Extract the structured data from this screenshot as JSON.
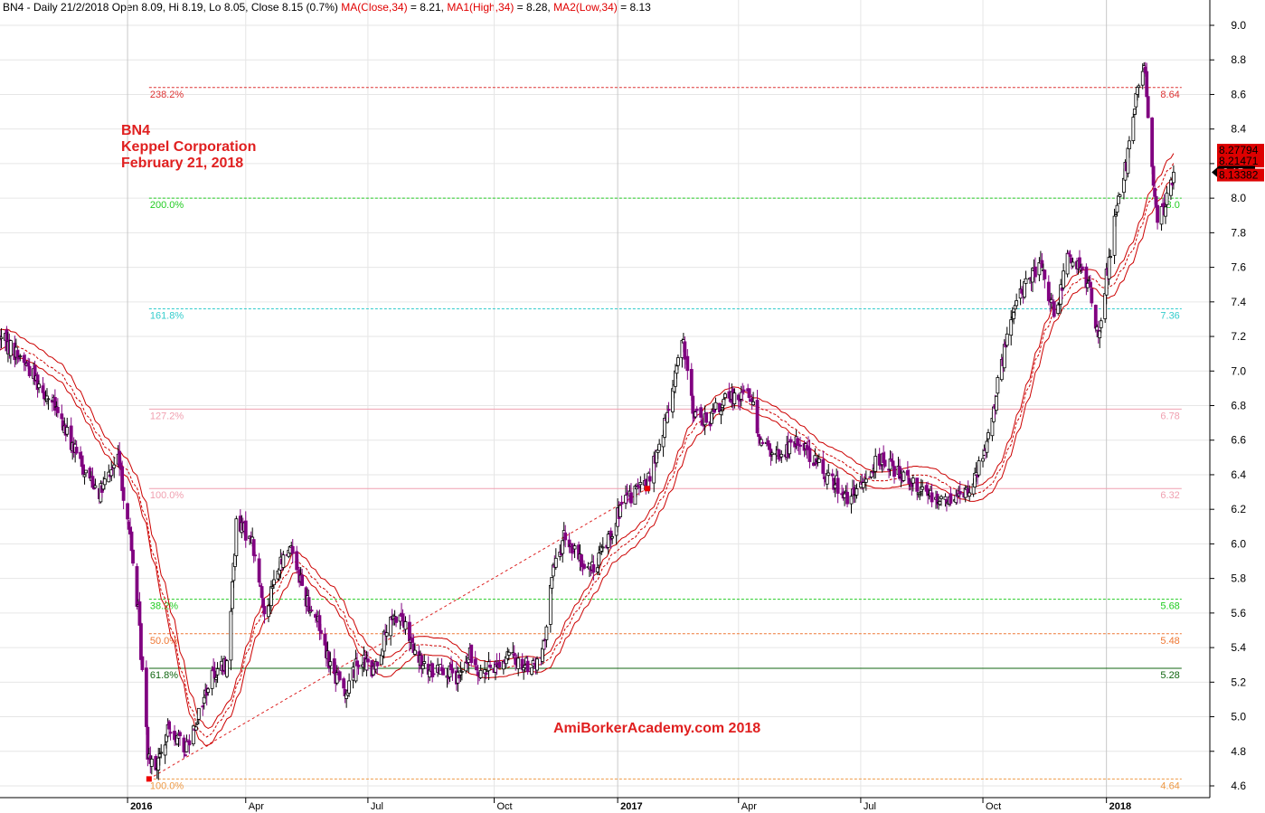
{
  "header": {
    "prefix": "BN4 - Daily 21/2/2018 Open 8.09, Hi 8.19, Lo 8.05, Close 8.15 (0.7%)",
    "ma_label": "MA(Close,34)",
    "ma_value": " = 8.21,",
    "ma1_label": "MA1(High,34)",
    "ma1_value": " = 8.28,",
    "ma2_label": "MA2(Low,34)",
    "ma2_value": " = 8.13"
  },
  "annotations": {
    "ticker": "BN4",
    "company": "Keppel Corporation",
    "date": "February 21, 2018",
    "watermark": "AmiBorkerAcademy.com 2018"
  },
  "colors": {
    "candle_up": "#000000",
    "candle_down": "#800080",
    "moving_average": "#cc0000",
    "annotation_text": "#e02020",
    "gridline": "#e6e6e6"
  },
  "chart_data": {
    "type": "candlestick",
    "ylim": [
      4.5,
      9.0
    ],
    "y_ticks": [
      "4.6",
      "4.8",
      "5.0",
      "5.2",
      "5.4",
      "5.6",
      "5.8",
      "6.0",
      "6.2",
      "6.4",
      "6.6",
      "6.8",
      "7.0",
      "7.2",
      "7.4",
      "7.6",
      "7.8",
      "8.0",
      "8.2",
      "8.4",
      "8.6",
      "8.8",
      "9.0"
    ],
    "x_ticks": [
      {
        "label": "2016",
        "date": "2016-01-04",
        "bold": true
      },
      {
        "label": "Apr",
        "date": "2016-04-01",
        "bold": false
      },
      {
        "label": "Jul",
        "date": "2016-07-01",
        "bold": false
      },
      {
        "label": "Oct",
        "date": "2016-10-03",
        "bold": false
      },
      {
        "label": "2017",
        "date": "2017-01-03",
        "bold": true
      },
      {
        "label": "Apr",
        "date": "2017-04-03",
        "bold": false
      },
      {
        "label": "Jul",
        "date": "2017-07-03",
        "bold": false
      },
      {
        "label": "Oct",
        "date": "2017-10-02",
        "bold": false
      },
      {
        "label": "2018",
        "date": "2018-01-02",
        "bold": true
      }
    ],
    "price_path": [
      [
        "2015-10-01",
        7.2
      ],
      [
        "2015-10-20",
        7.05
      ],
      [
        "2015-11-10",
        6.8
      ],
      [
        "2015-12-01",
        6.45
      ],
      [
        "2015-12-15",
        6.3
      ],
      [
        "2015-12-28",
        6.5
      ],
      [
        "2016-01-05",
        6.1
      ],
      [
        "2016-01-12",
        5.6
      ],
      [
        "2016-01-19",
        4.8
      ],
      [
        "2016-01-26",
        4.72
      ],
      [
        "2016-02-05",
        4.95
      ],
      [
        "2016-02-15",
        4.8
      ],
      [
        "2016-02-25",
        5.0
      ],
      [
        "2016-03-07",
        5.25
      ],
      [
        "2016-03-18",
        5.3
      ],
      [
        "2016-03-25",
        6.1
      ],
      [
        "2016-04-05",
        6.05
      ],
      [
        "2016-04-15",
        5.6
      ],
      [
        "2016-04-25",
        5.85
      ],
      [
        "2016-05-05",
        6.0
      ],
      [
        "2016-05-15",
        5.7
      ],
      [
        "2016-05-25",
        5.55
      ],
      [
        "2016-06-05",
        5.25
      ],
      [
        "2016-06-15",
        5.15
      ],
      [
        "2016-06-25",
        5.35
      ],
      [
        "2016-07-05",
        5.25
      ],
      [
        "2016-07-15",
        5.5
      ],
      [
        "2016-07-25",
        5.6
      ],
      [
        "2016-08-05",
        5.35
      ],
      [
        "2016-08-15",
        5.25
      ],
      [
        "2016-08-25",
        5.3
      ],
      [
        "2016-09-05",
        5.2
      ],
      [
        "2016-09-15",
        5.35
      ],
      [
        "2016-09-25",
        5.25
      ],
      [
        "2016-10-05",
        5.3
      ],
      [
        "2016-10-15",
        5.35
      ],
      [
        "2016-10-25",
        5.3
      ],
      [
        "2016-11-05",
        5.3
      ],
      [
        "2016-11-10",
        5.42
      ],
      [
        "2016-11-14",
        5.8
      ],
      [
        "2016-11-25",
        6.05
      ],
      [
        "2016-12-05",
        5.9
      ],
      [
        "2016-12-15",
        5.85
      ],
      [
        "2016-12-25",
        6.0
      ],
      [
        "2017-01-05",
        6.2
      ],
      [
        "2017-01-15",
        6.3
      ],
      [
        "2017-01-25",
        6.35
      ],
      [
        "2017-02-05",
        6.6
      ],
      [
        "2017-02-15",
        7.0
      ],
      [
        "2017-02-20",
        7.18
      ],
      [
        "2017-03-01",
        6.75
      ],
      [
        "2017-03-10",
        6.7
      ],
      [
        "2017-03-20",
        6.8
      ],
      [
        "2017-03-30",
        6.85
      ],
      [
        "2017-04-10",
        6.9
      ],
      [
        "2017-04-20",
        6.6
      ],
      [
        "2017-05-01",
        6.5
      ],
      [
        "2017-05-10",
        6.55
      ],
      [
        "2017-05-20",
        6.6
      ],
      [
        "2017-06-01",
        6.45
      ],
      [
        "2017-06-15",
        6.35
      ],
      [
        "2017-06-25",
        6.25
      ],
      [
        "2017-07-05",
        6.35
      ],
      [
        "2017-07-15",
        6.5
      ],
      [
        "2017-07-25",
        6.45
      ],
      [
        "2017-08-05",
        6.4
      ],
      [
        "2017-08-20",
        6.3
      ],
      [
        "2017-09-05",
        6.25
      ],
      [
        "2017-09-20",
        6.3
      ],
      [
        "2017-09-30",
        6.45
      ],
      [
        "2017-10-08",
        6.7
      ],
      [
        "2017-10-15",
        7.0
      ],
      [
        "2017-10-25",
        7.35
      ],
      [
        "2017-11-05",
        7.55
      ],
      [
        "2017-11-15",
        7.6
      ],
      [
        "2017-11-25",
        7.3
      ],
      [
        "2017-12-05",
        7.7
      ],
      [
        "2017-12-15",
        7.55
      ],
      [
        "2017-12-20",
        7.5
      ],
      [
        "2017-12-27",
        7.2
      ],
      [
        "2018-01-03",
        7.6
      ],
      [
        "2018-01-10",
        7.95
      ],
      [
        "2018-01-17",
        8.2
      ],
      [
        "2018-01-24",
        8.6
      ],
      [
        "2018-01-30",
        8.78
      ],
      [
        "2018-02-05",
        8.15
      ],
      [
        "2018-02-09",
        7.85
      ],
      [
        "2018-02-14",
        7.95
      ],
      [
        "2018-02-21",
        8.15
      ]
    ],
    "fibonacci_levels": [
      {
        "label": "238.2%",
        "value": 8.64,
        "value_text": "8.64",
        "color": "#dd3333",
        "style": "dashed"
      },
      {
        "label": "200.0%",
        "value": 8.0,
        "value_text": "8.0",
        "color": "#22cc22",
        "style": "dashed"
      },
      {
        "label": "161.8%",
        "value": 7.36,
        "value_text": "7.36",
        "color": "#33cccc",
        "style": "dashed"
      },
      {
        "label": "127.2%",
        "value": 6.78,
        "value_text": "6.78",
        "color": "#f0a0b0",
        "style": "solid"
      },
      {
        "label": "100.0%",
        "value": 6.32,
        "value_text": "6.32",
        "color": "#f0a0b0",
        "style": "solid"
      },
      {
        "label": "38.2%",
        "value": 5.68,
        "value_text": "5.68",
        "color": "#22cc22",
        "style": "dashed"
      },
      {
        "label": "50.0%",
        "value": 5.48,
        "value_text": "5.48",
        "color": "#ee7733",
        "style": "dashed"
      },
      {
        "label": "61.8%",
        "value": 5.28,
        "value_text": "5.28",
        "color": "#116611",
        "style": "solid"
      },
      {
        "label": "100.0%",
        "value": 4.64,
        "value_text": "4.64",
        "color": "#ee9944",
        "style": "dashed"
      }
    ],
    "price_labels": [
      {
        "value": 8.27794,
        "text": "8.27794",
        "color": "#dd0000"
      },
      {
        "value": 8.21471,
        "text": "8.21471",
        "color": "#dd0000"
      },
      {
        "value": 8.15,
        "text": "8.15",
        "color": "#000000"
      },
      {
        "value": 8.13382,
        "text": "8.13382",
        "color": "#dd0000"
      }
    ],
    "swing_points": [
      {
        "date": "2016-01-20",
        "value": 4.64
      },
      {
        "date": "2017-01-25",
        "value": 6.32
      }
    ]
  }
}
